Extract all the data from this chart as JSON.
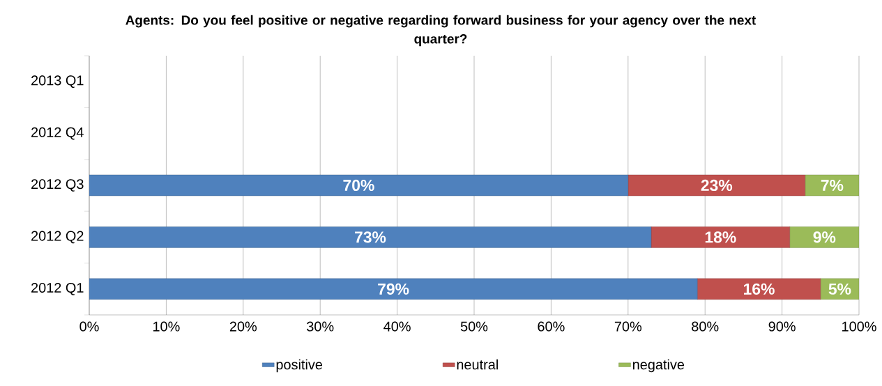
{
  "chart_data": {
    "type": "bar",
    "orientation": "horizontal",
    "stacked": true,
    "title": "Agents: Do you feel positive or negative regarding forward business for your agency over the next quarter?",
    "categories": [
      "2013 Q1",
      "2012 Q4",
      "2012 Q3",
      "2012 Q2",
      "2012 Q1"
    ],
    "series": [
      {
        "name": "positive",
        "color": "#4f81bd",
        "values": [
          null,
          null,
          70,
          73,
          79
        ],
        "value_labels": [
          null,
          null,
          "70%",
          "73%",
          "79%"
        ]
      },
      {
        "name": "neutral",
        "color": "#c0504d",
        "values": [
          null,
          null,
          23,
          18,
          16
        ],
        "value_labels": [
          null,
          null,
          "23%",
          "18%",
          "16%"
        ]
      },
      {
        "name": "negative",
        "color": "#9bbb59",
        "values": [
          null,
          null,
          7,
          9,
          5
        ],
        "value_labels": [
          null,
          null,
          "7%",
          "9%",
          "5%"
        ]
      }
    ],
    "xlim": [
      0,
      100
    ],
    "xticks": [
      {
        "value": 0,
        "label": "0%"
      },
      {
        "value": 10,
        "label": "10%"
      },
      {
        "value": 20,
        "label": "20%"
      },
      {
        "value": 30,
        "label": "30%"
      },
      {
        "value": 40,
        "label": "40%"
      },
      {
        "value": 50,
        "label": "50%"
      },
      {
        "value": 60,
        "label": "60%"
      },
      {
        "value": 70,
        "label": "70%"
      },
      {
        "value": 80,
        "label": "80%"
      },
      {
        "value": 90,
        "label": "90%"
      },
      {
        "value": 100,
        "label": "100%"
      }
    ],
    "grid": "x",
    "legend": "bottom"
  }
}
